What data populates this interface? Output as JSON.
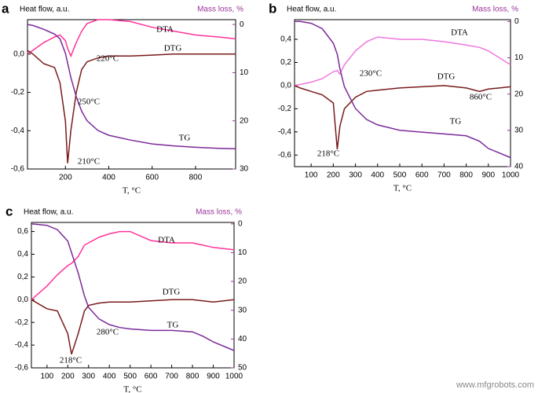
{
  "chart_data": [
    {
      "type": "line",
      "panel": "a",
      "y_label": "Heat flow, a.u.",
      "y2_label": "Mass loss, %",
      "x_label": "T, °C",
      "x": [
        25,
        50,
        100,
        150,
        175,
        200,
        210,
        225,
        250,
        275,
        300,
        350,
        400,
        500,
        600,
        700,
        800,
        900,
        985
      ],
      "xlim": [
        25,
        985
      ],
      "xticks": [
        200,
        400,
        600,
        800
      ],
      "ylim": [
        -0.6,
        0.18
      ],
      "yticks": [
        {
          "value": 0,
          "label": "0,0"
        },
        {
          "value": -0.2,
          "label": "-0,2"
        },
        {
          "value": -0.4,
          "label": "-0,4"
        },
        {
          "value": -0.6,
          "label": "-0,6"
        }
      ],
      "y2lim": [
        30,
        -1
      ],
      "y2ticks": [
        0,
        10,
        20,
        30
      ],
      "series": [
        {
          "name": "DTA",
          "color": "#ff3399",
          "values": [
            0.0,
            0.02,
            0.06,
            0.09,
            0.1,
            0.07,
            0.03,
            -0.01,
            0.06,
            0.12,
            0.16,
            0.18,
            0.18,
            0.17,
            0.14,
            0.12,
            0.1,
            0.09,
            0.08
          ]
        },
        {
          "name": "DTG",
          "color": "#7a1a1a",
          "values": [
            0.02,
            0.0,
            -0.05,
            -0.07,
            -0.15,
            -0.35,
            -0.57,
            -0.4,
            -0.2,
            -0.08,
            -0.04,
            -0.02,
            -0.01,
            -0.01,
            -0.005,
            0.0,
            0.0,
            0.0,
            0.0
          ]
        },
        {
          "name": "TG",
          "color": "#7b2a9a",
          "axis": "y2",
          "values": [
            0,
            0.2,
            1,
            2,
            3,
            6,
            8,
            11,
            15,
            18,
            20,
            22,
            23,
            24,
            24.8,
            25.2,
            25.5,
            25.7,
            25.8
          ]
        }
      ],
      "annotations": [
        "220°C",
        "250°C",
        "210°C"
      ]
    },
    {
      "type": "line",
      "panel": "b",
      "y_label": "Heat flow, a.u.",
      "y2_label": "Mass loss, %",
      "x_label": "T, °C",
      "x": [
        25,
        50,
        100,
        150,
        200,
        218,
        230,
        250,
        300,
        350,
        400,
        500,
        600,
        700,
        800,
        860,
        900,
        1000
      ],
      "xlim": [
        25,
        1000
      ],
      "xticks": [
        100,
        200,
        300,
        400,
        500,
        600,
        700,
        800,
        900,
        1000
      ],
      "ylim": [
        -0.7,
        0.57
      ],
      "yticks": [
        {
          "value": 0.4,
          "label": "0,4"
        },
        {
          "value": 0.2,
          "label": "0,2"
        },
        {
          "value": 0,
          "label": "0,0"
        },
        {
          "value": -0.2,
          "label": "-0,2"
        },
        {
          "value": -0.4,
          "label": "-0,4"
        },
        {
          "value": -0.6,
          "label": "-0,6"
        }
      ],
      "y2lim": [
        40,
        -0.5
      ],
      "y2ticks": [
        0,
        10,
        20,
        30,
        40
      ],
      "series": [
        {
          "name": "DTA",
          "color": "#ee77dd",
          "values": [
            0.0,
            0.01,
            0.03,
            0.06,
            0.12,
            0.13,
            0.1,
            0.18,
            0.3,
            0.38,
            0.42,
            0.4,
            0.4,
            0.38,
            0.35,
            0.33,
            0.3,
            0.18
          ]
        },
        {
          "name": "DTG",
          "color": "#7a1a1a",
          "values": [
            0.0,
            -0.02,
            -0.05,
            -0.08,
            -0.15,
            -0.55,
            -0.35,
            -0.2,
            -0.1,
            -0.05,
            -0.04,
            -0.02,
            -0.01,
            0.0,
            -0.02,
            -0.05,
            -0.03,
            -0.01
          ]
        },
        {
          "name": "TG",
          "color": "#7b2a9a",
          "axis": "y2",
          "values": [
            0,
            0,
            0.5,
            2,
            6,
            9,
            13,
            18,
            24,
            27,
            28.5,
            30,
            30.5,
            31,
            31.5,
            33,
            35,
            37.5
          ]
        }
      ],
      "annotations": [
        "230°C",
        "218°C",
        "860°C"
      ]
    },
    {
      "type": "line",
      "panel": "c",
      "y_label": "Heat flow, a.u.",
      "y2_label": "Mass loss, %",
      "x_label": "T, °C",
      "x": [
        25,
        100,
        150,
        200,
        218,
        250,
        280,
        300,
        350,
        400,
        450,
        500,
        600,
        700,
        800,
        850,
        900,
        1000
      ],
      "xlim": [
        25,
        1000
      ],
      "xticks": [
        100,
        200,
        300,
        400,
        500,
        600,
        700,
        800,
        900,
        1000
      ],
      "ylim": [
        -0.6,
        0.68
      ],
      "yticks": [
        {
          "value": 0.6,
          "label": "0,6"
        },
        {
          "value": 0.4,
          "label": "0,4"
        },
        {
          "value": 0.2,
          "label": "0,2"
        },
        {
          "value": 0,
          "label": "0,0"
        },
        {
          "value": -0.2,
          "label": "-0,2"
        },
        {
          "value": -0.4,
          "label": "-0,4"
        },
        {
          "value": -0.6,
          "label": "-0,6"
        }
      ],
      "y2lim": [
        50,
        -0.5
      ],
      "y2ticks": [
        0,
        10,
        20,
        30,
        40,
        50
      ],
      "series": [
        {
          "name": "DTA",
          "color": "#ff3399",
          "values": [
            0.0,
            0.12,
            0.22,
            0.3,
            0.32,
            0.38,
            0.48,
            0.5,
            0.55,
            0.58,
            0.6,
            0.6,
            0.52,
            0.5,
            0.5,
            0.48,
            0.46,
            0.44
          ]
        },
        {
          "name": "DTG",
          "color": "#7a1a1a",
          "values": [
            0.0,
            -0.08,
            -0.1,
            -0.3,
            -0.48,
            -0.3,
            -0.1,
            -0.05,
            -0.03,
            -0.02,
            -0.02,
            -0.02,
            -0.01,
            0.0,
            0.0,
            -0.01,
            -0.02,
            0.0
          ]
        },
        {
          "name": "TG",
          "color": "#7b2a9a",
          "axis": "y2",
          "values": [
            0,
            0.5,
            2,
            6,
            10,
            17,
            25,
            29,
            33,
            35,
            36,
            36.5,
            37,
            37,
            37.5,
            39,
            41,
            44
          ]
        }
      ],
      "annotations": [
        "218°C",
        "280°C"
      ]
    }
  ],
  "watermark": "www.mfgrobots.com"
}
